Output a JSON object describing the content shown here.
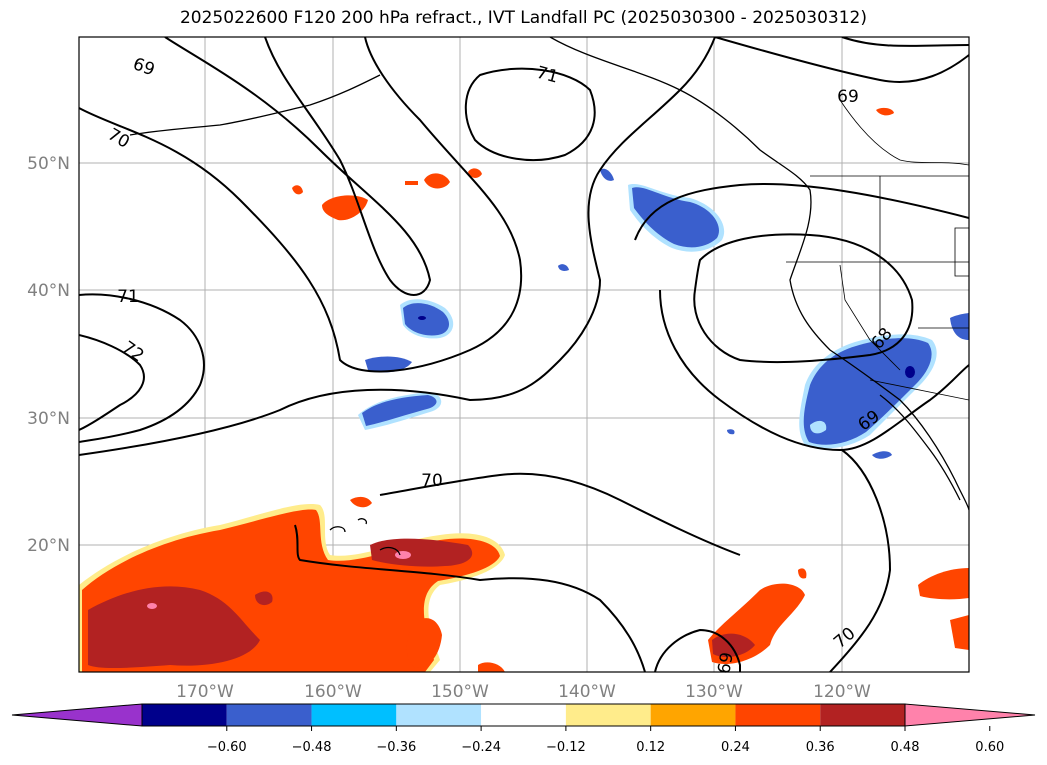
{
  "title": "2025022600 F120 200 hPa refract., IVT Landfall PC (2025030300 - 2025030312)",
  "map": {
    "lat_labels": [
      "50°N",
      "40°N",
      "30°N",
      "20°N"
    ],
    "lon_labels": [
      "170°W",
      "160°W",
      "150°W",
      "140°W",
      "130°W",
      "120°W"
    ],
    "contour_labels": [
      "69",
      "70",
      "71",
      "71",
      "72",
      "70",
      "69",
      "68",
      "69",
      "70",
      "69"
    ]
  },
  "colorbar": {
    "ticks": [
      "−0.60",
      "−0.48",
      "−0.36",
      "−0.24",
      "−0.12",
      "0.12",
      "0.24",
      "0.36",
      "0.48",
      "0.60"
    ],
    "colors": [
      "#9932cc",
      "#00008b",
      "#3a5fcd",
      "#00bfff",
      "#b0e2ff",
      "#ffffff",
      "#ffec8b",
      "#ffa500",
      "#ff4500",
      "#b22222",
      "#ff82ab"
    ]
  }
}
